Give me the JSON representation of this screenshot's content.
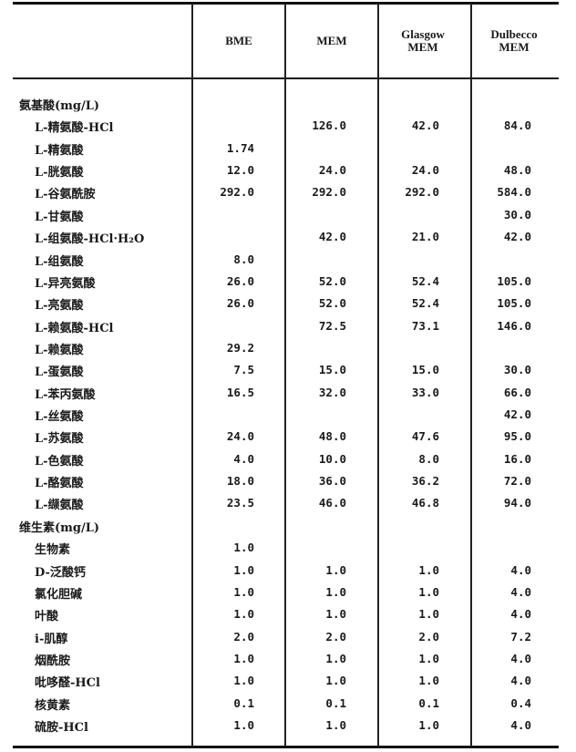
{
  "columns": [
    "",
    "BME",
    "MEM",
    "Glasgow MEM",
    "Dulbecco MEM"
  ],
  "rows": [
    {
      "section": true,
      "label": "氨基酸(mg/L)",
      "values": [
        "",
        "",
        "",
        ""
      ]
    },
    {
      "label": "L-精氨酸-HCl",
      "values": [
        "",
        "126.0",
        "42.0",
        "84.0"
      ]
    },
    {
      "label": "L-精氨酸",
      "values": [
        "1.74",
        "",
        "",
        ""
      ]
    },
    {
      "label": "L-胱氨酸",
      "values": [
        "12.0",
        "24.0",
        "24.0",
        "48.0"
      ]
    },
    {
      "label": "L-谷氨酰胺",
      "values": [
        "292.0",
        "292.0",
        "292.0",
        "584.0"
      ]
    },
    {
      "label": "L-甘氨酸",
      "values": [
        "",
        "",
        "",
        "30.0"
      ]
    },
    {
      "label": "L-组氨酸-HCl·H₂O",
      "values": [
        "",
        "42.0",
        "21.0",
        "42.0"
      ]
    },
    {
      "label": "L-组氨酸",
      "values": [
        "8.0",
        "",
        "",
        ""
      ]
    },
    {
      "label": "L-异亮氨酸",
      "values": [
        "26.0",
        "52.0",
        "52.4",
        "105.0"
      ]
    },
    {
      "label": "L-亮氨酸",
      "values": [
        "26.0",
        "52.0",
        "52.4",
        "105.0"
      ]
    },
    {
      "label": "L-赖氨酸-HCl",
      "values": [
        "",
        "72.5",
        "73.1",
        "146.0"
      ]
    },
    {
      "label": "L-赖氨酸",
      "values": [
        "29.2",
        "",
        "",
        ""
      ]
    },
    {
      "label": "L-蛋氨酸",
      "values": [
        "7.5",
        "15.0",
        "15.0",
        "30.0"
      ]
    },
    {
      "label": "L-苯丙氨酸",
      "values": [
        "16.5",
        "32.0",
        "33.0",
        "66.0"
      ]
    },
    {
      "label": "L-丝氨酸",
      "values": [
        "",
        "",
        "",
        "42.0"
      ]
    },
    {
      "label": "L-苏氨酸",
      "values": [
        "24.0",
        "48.0",
        "47.6",
        "95.0"
      ]
    },
    {
      "label": "L-色氨酸",
      "values": [
        "4.0",
        "10.0",
        "8.0",
        "16.0"
      ]
    },
    {
      "label": "L-酪氨酸",
      "values": [
        "18.0",
        "36.0",
        "36.2",
        "72.0"
      ]
    },
    {
      "label": "L-缬氨酸",
      "values": [
        "23.5",
        "46.0",
        "46.8",
        "94.0"
      ]
    },
    {
      "section": true,
      "label": "维生素(mg/L)",
      "values": [
        "",
        "",
        "",
        ""
      ]
    },
    {
      "label": "生物素",
      "values": [
        "1.0",
        "",
        "",
        ""
      ]
    },
    {
      "label": "D-泛酸钙",
      "values": [
        "1.0",
        "1.0",
        "1.0",
        "4.0"
      ]
    },
    {
      "label": "氯化胆碱",
      "values": [
        "1.0",
        "1.0",
        "1.0",
        "4.0"
      ]
    },
    {
      "label": "叶酸",
      "values": [
        "1.0",
        "1.0",
        "1.0",
        "4.0"
      ]
    },
    {
      "label": "i-肌醇",
      "values": [
        "2.0",
        "2.0",
        "2.0",
        "7.2"
      ]
    },
    {
      "label": "烟酰胺",
      "values": [
        "1.0",
        "1.0",
        "1.0",
        "4.0"
      ]
    },
    {
      "label": "吡哆醛-HCl",
      "values": [
        "1.0",
        "1.0",
        "1.0",
        "4.0"
      ]
    },
    {
      "label": "核黄素",
      "values": [
        "0.1",
        "0.1",
        "0.1",
        "0.4"
      ]
    },
    {
      "label": "硫胺-HCl",
      "values": [
        "1.0",
        "1.0",
        "1.0",
        "4.0"
      ]
    }
  ]
}
